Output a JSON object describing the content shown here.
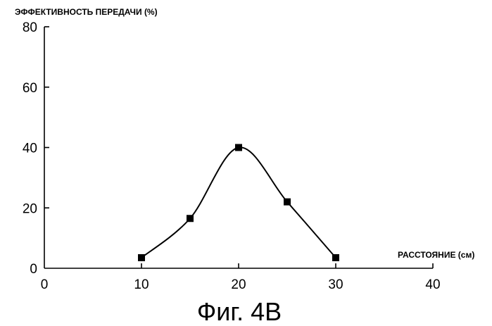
{
  "chart_data": {
    "type": "line",
    "title": "",
    "ylabel": "ЭФФЕКТИВНОСТЬ ПЕРЕДАЧИ (%)",
    "xlabel": "РАССТОЯНИЕ (см)",
    "xlim": [
      0,
      40
    ],
    "ylim": [
      0,
      80
    ],
    "x_ticks": [
      0,
      10,
      20,
      30,
      40
    ],
    "y_ticks": [
      0,
      20,
      40,
      60,
      80
    ],
    "x_tick_labels": [
      "0",
      "10",
      "20",
      "30",
      "40"
    ],
    "y_tick_labels": [
      "0",
      "20",
      "40",
      "60",
      "80"
    ],
    "grid": false,
    "marker": "square",
    "series": [
      {
        "x": [
          10,
          15,
          20,
          25,
          30
        ],
        "values": [
          3.5,
          16.5,
          40,
          22,
          3.5
        ]
      }
    ]
  },
  "caption": "Фиг. 4В"
}
